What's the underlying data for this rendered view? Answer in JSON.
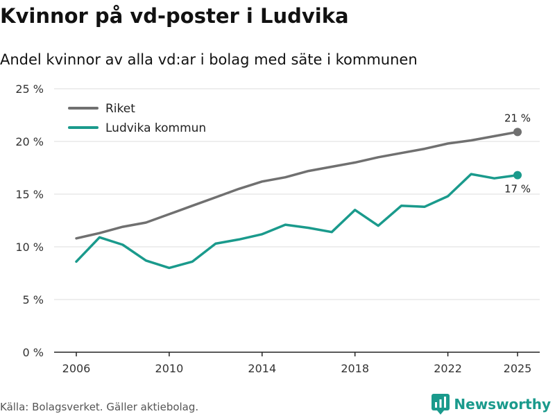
{
  "header": {
    "title": "Kvinnor på vd-poster i Ludvika",
    "subtitle": "Andel kvinnor av alla vd:ar i bolag med säte i kommunen"
  },
  "footer": {
    "source": "Källa: Bolagsverket. Gäller aktiebolag.",
    "brand": "Newsworthy",
    "brand_icon": "bar-chart-logo-icon"
  },
  "colors": {
    "riket": "#707070",
    "ludvika": "#1a9a8c",
    "grid": "#dddddd",
    "axis": "#222222"
  },
  "chart_data": {
    "type": "line",
    "title": "Kvinnor på vd-poster i Ludvika",
    "subtitle": "Andel kvinnor av alla vd:ar i bolag med säte i kommunen",
    "xlabel": "",
    "ylabel": "",
    "x": [
      2006,
      2007,
      2008,
      2009,
      2010,
      2011,
      2012,
      2013,
      2014,
      2015,
      2016,
      2017,
      2018,
      2019,
      2020,
      2021,
      2022,
      2023,
      2024,
      2025
    ],
    "xticks": [
      2006,
      2010,
      2014,
      2018,
      2022,
      2025
    ],
    "xtick_labels": [
      "2006",
      "2010",
      "2014",
      "2018",
      "2022",
      "2025"
    ],
    "xlim": [
      2006,
      2025
    ],
    "ylim": [
      0,
      25
    ],
    "yticks": [
      0,
      5,
      10,
      15,
      20,
      25
    ],
    "ytick_labels": [
      "0 %",
      "5 %",
      "10 %",
      "15 %",
      "20 %",
      "25 %"
    ],
    "grid": true,
    "legend_position": "top-left",
    "series": [
      {
        "name": "Riket",
        "color": "#707070",
        "values": [
          10.8,
          11.3,
          11.9,
          12.3,
          13.1,
          13.9,
          14.7,
          15.5,
          16.2,
          16.6,
          17.2,
          17.6,
          18.0,
          18.5,
          18.9,
          19.3,
          19.8,
          20.1,
          20.5,
          20.9
        ],
        "end_label": "21 %"
      },
      {
        "name": "Ludvika kommun",
        "color": "#1a9a8c",
        "values": [
          8.6,
          10.9,
          10.2,
          8.7,
          8.0,
          8.6,
          10.3,
          10.7,
          11.2,
          12.1,
          11.8,
          11.4,
          13.5,
          12.0,
          13.9,
          13.8,
          14.8,
          16.9,
          16.5,
          16.8
        ],
        "end_label": "17 %"
      }
    ]
  }
}
